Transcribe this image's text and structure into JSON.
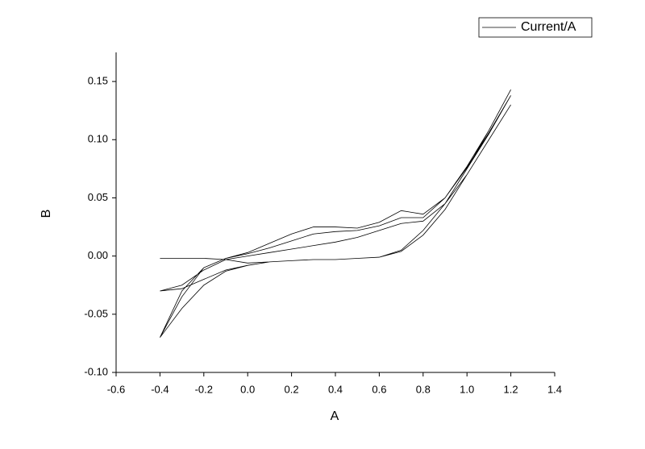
{
  "chart_data": {
    "type": "line",
    "x_label": "A",
    "y_label": "B",
    "x": [
      -0.4,
      -0.3,
      -0.2,
      -0.1,
      0,
      0.1,
      0.2,
      0.3,
      0.4,
      0.5,
      0.6,
      0.7,
      0.8,
      0.9,
      1.0,
      1.1,
      1.2,
      1.1,
      1.0,
      0.9,
      0.8,
      0.7,
      0.6,
      0.5,
      0.4,
      0.3,
      0.2,
      0.1,
      0,
      -0.1,
      -0.2,
      -0.3,
      -0.4,
      -0.3,
      -0.2,
      -0.1,
      0,
      0.1,
      0.2,
      0.3,
      0.4,
      0.5,
      0.6,
      0.7,
      0.8,
      0.9,
      1.0,
      1.1,
      1.2,
      1.1,
      1.0,
      0.9,
      0.8,
      0.7,
      0.6,
      0.5,
      0.4,
      0.3,
      0.2,
      0.1,
      0,
      -0.1,
      -0.2,
      -0.3,
      -0.4,
      -0.3,
      -0.2,
      -0.1,
      0,
      0.1,
      0.2,
      0.3,
      0.4,
      0.5,
      0.6,
      0.7,
      0.8,
      0.9,
      1.0,
      1.1,
      1.2,
      1.1,
      1.0,
      0.9,
      0.8,
      0.7,
      0.6,
      0.5,
      0.4,
      0.3,
      0.2,
      0.1,
      0,
      -0.1,
      -0.2,
      -0.3,
      -0.4
    ],
    "series": [
      {
        "name": "Current/A",
        "color": "#000000",
        "values": [
          -0.002,
          -0.002,
          -0.002,
          -0.003,
          -0.006,
          -0.005,
          -0.004,
          -0.003,
          -0.003,
          -0.002,
          -0.001,
          0.004,
          0.018,
          0.04,
          0.07,
          0.1,
          0.13,
          0.1,
          0.07,
          0.045,
          0.03,
          0.028,
          0.022,
          0.016,
          0.012,
          0.009,
          0.006,
          0.003,
          0.0,
          -0.003,
          -0.012,
          -0.025,
          -0.03,
          -0.028,
          -0.02,
          -0.012,
          -0.008,
          -0.005,
          -0.004,
          -0.003,
          -0.003,
          -0.002,
          -0.001,
          0.005,
          0.022,
          0.045,
          0.075,
          0.105,
          0.138,
          0.106,
          0.076,
          0.05,
          0.033,
          0.033,
          0.026,
          0.022,
          0.021,
          0.019,
          0.013,
          0.007,
          0.002,
          -0.002,
          -0.01,
          -0.03,
          -0.07,
          -0.045,
          -0.025,
          -0.013,
          -0.008,
          -0.005,
          -0.004,
          -0.003,
          -0.003,
          -0.002,
          -0.001,
          0.005,
          0.022,
          0.045,
          0.075,
          0.108,
          0.143,
          0.108,
          0.077,
          0.05,
          0.036,
          0.039,
          0.029,
          0.024,
          0.025,
          0.025,
          0.019,
          0.011,
          0.003,
          -0.002,
          -0.01,
          -0.035,
          -0.07
        ]
      }
    ],
    "xlim": [
      -0.6,
      1.4
    ],
    "xticks": [
      -0.6,
      -0.4,
      -0.2,
      {
        "value": 0,
        "label": "0.0"
      },
      0.2,
      0.4,
      0.6,
      0.8,
      {
        "value": 1,
        "label": "1.0"
      },
      1.2,
      1.4
    ],
    "ylim": [
      -0.1,
      0.175
    ],
    "yticks": [
      {
        "value": -0.1,
        "label": "-0.10"
      },
      {
        "value": -0.05,
        "label": "-0.05"
      },
      {
        "value": 0,
        "label": "0.00"
      },
      {
        "value": 0.05,
        "label": "0.05"
      },
      {
        "value": 0.1,
        "label": "0.10"
      },
      {
        "value": 0.15,
        "label": "0.15"
      }
    ],
    "grid": false,
    "legend": "upper right"
  }
}
